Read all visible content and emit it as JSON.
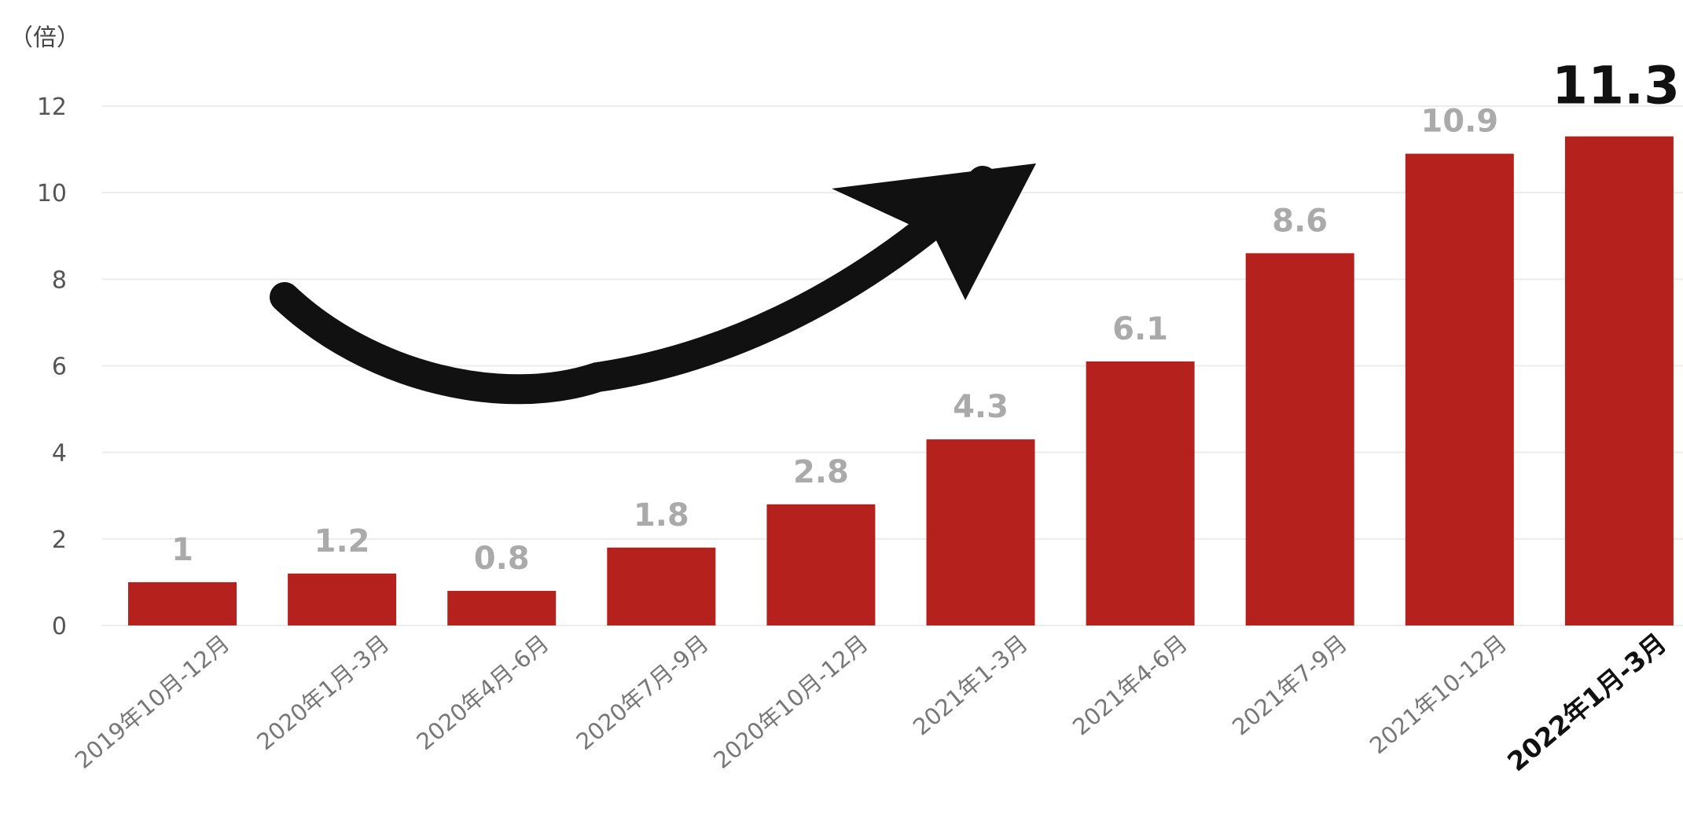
{
  "chart_data": {
    "type": "bar",
    "unit_label": "（倍）",
    "categories": [
      "2019年10月-12月",
      "2020年1月-3月",
      "2020年4月-6月",
      "2020年7月-9月",
      "2020年10月-12月",
      "2021年1-3月",
      "2021年4-6月",
      "2021年7-9月",
      "2021年10-12月",
      "2022年1月-3月"
    ],
    "values": [
      1,
      1.2,
      0.8,
      1.8,
      2.8,
      4.3,
      6.1,
      8.6,
      10.9,
      11.3
    ],
    "value_labels": [
      "1",
      "1.2",
      "0.8",
      "1.8",
      "2.8",
      "4.3",
      "6.1",
      "8.6",
      "10.9",
      "11.3"
    ],
    "yticks": [
      "0",
      "2",
      "4",
      "6",
      "8",
      "10",
      "12"
    ],
    "ylim": [
      0,
      12
    ],
    "grid": true,
    "highlight_index": 9,
    "colors": {
      "bar": "#b5211c",
      "arrow": "#111111"
    }
  }
}
